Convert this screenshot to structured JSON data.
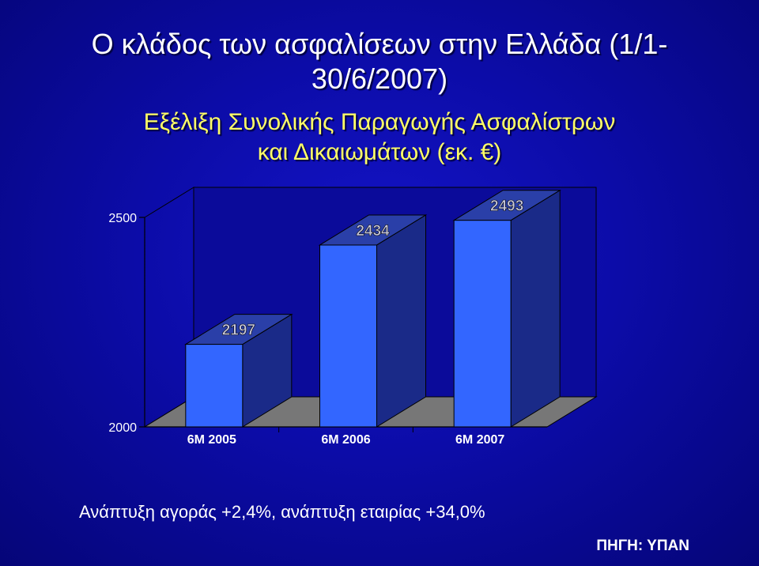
{
  "title": {
    "line1": "Ο κλάδος των ασφαλίσεων στην Ελλάδα (1/1-",
    "line2": "30/6/2007)"
  },
  "subtitle": {
    "line1": "Εξέλιξη Συνολικής Παραγωγής Ασφαλίστρων",
    "line2": "και Δικαιωμάτων (εκ. €)"
  },
  "chart_data": {
    "type": "bar",
    "categories": [
      "6M 2005",
      "6M 2006",
      "6M 2007"
    ],
    "values": [
      2197,
      2434,
      2493
    ],
    "ylim": [
      2000,
      2500
    ],
    "yticks": [
      "2000",
      "2500"
    ],
    "data_labels": [
      "2197",
      "2434",
      "2493"
    ],
    "colors": {
      "bar_front": "#3366ff",
      "bar_side": "#1a2a88",
      "bar_top": "#2a3fa8",
      "floor": "#777777",
      "back_wall": "#0b0b9a",
      "outline": "#000000",
      "label": "#c8c8dc"
    },
    "grid": false,
    "legend": "none"
  },
  "footer": {
    "growth_text": "Ανάπτυξη αγοράς +2,4%, ανάπτυξη εταιρίας +34,0%",
    "source": "ΠΗΓΗ: ΥΠΑΝ"
  }
}
